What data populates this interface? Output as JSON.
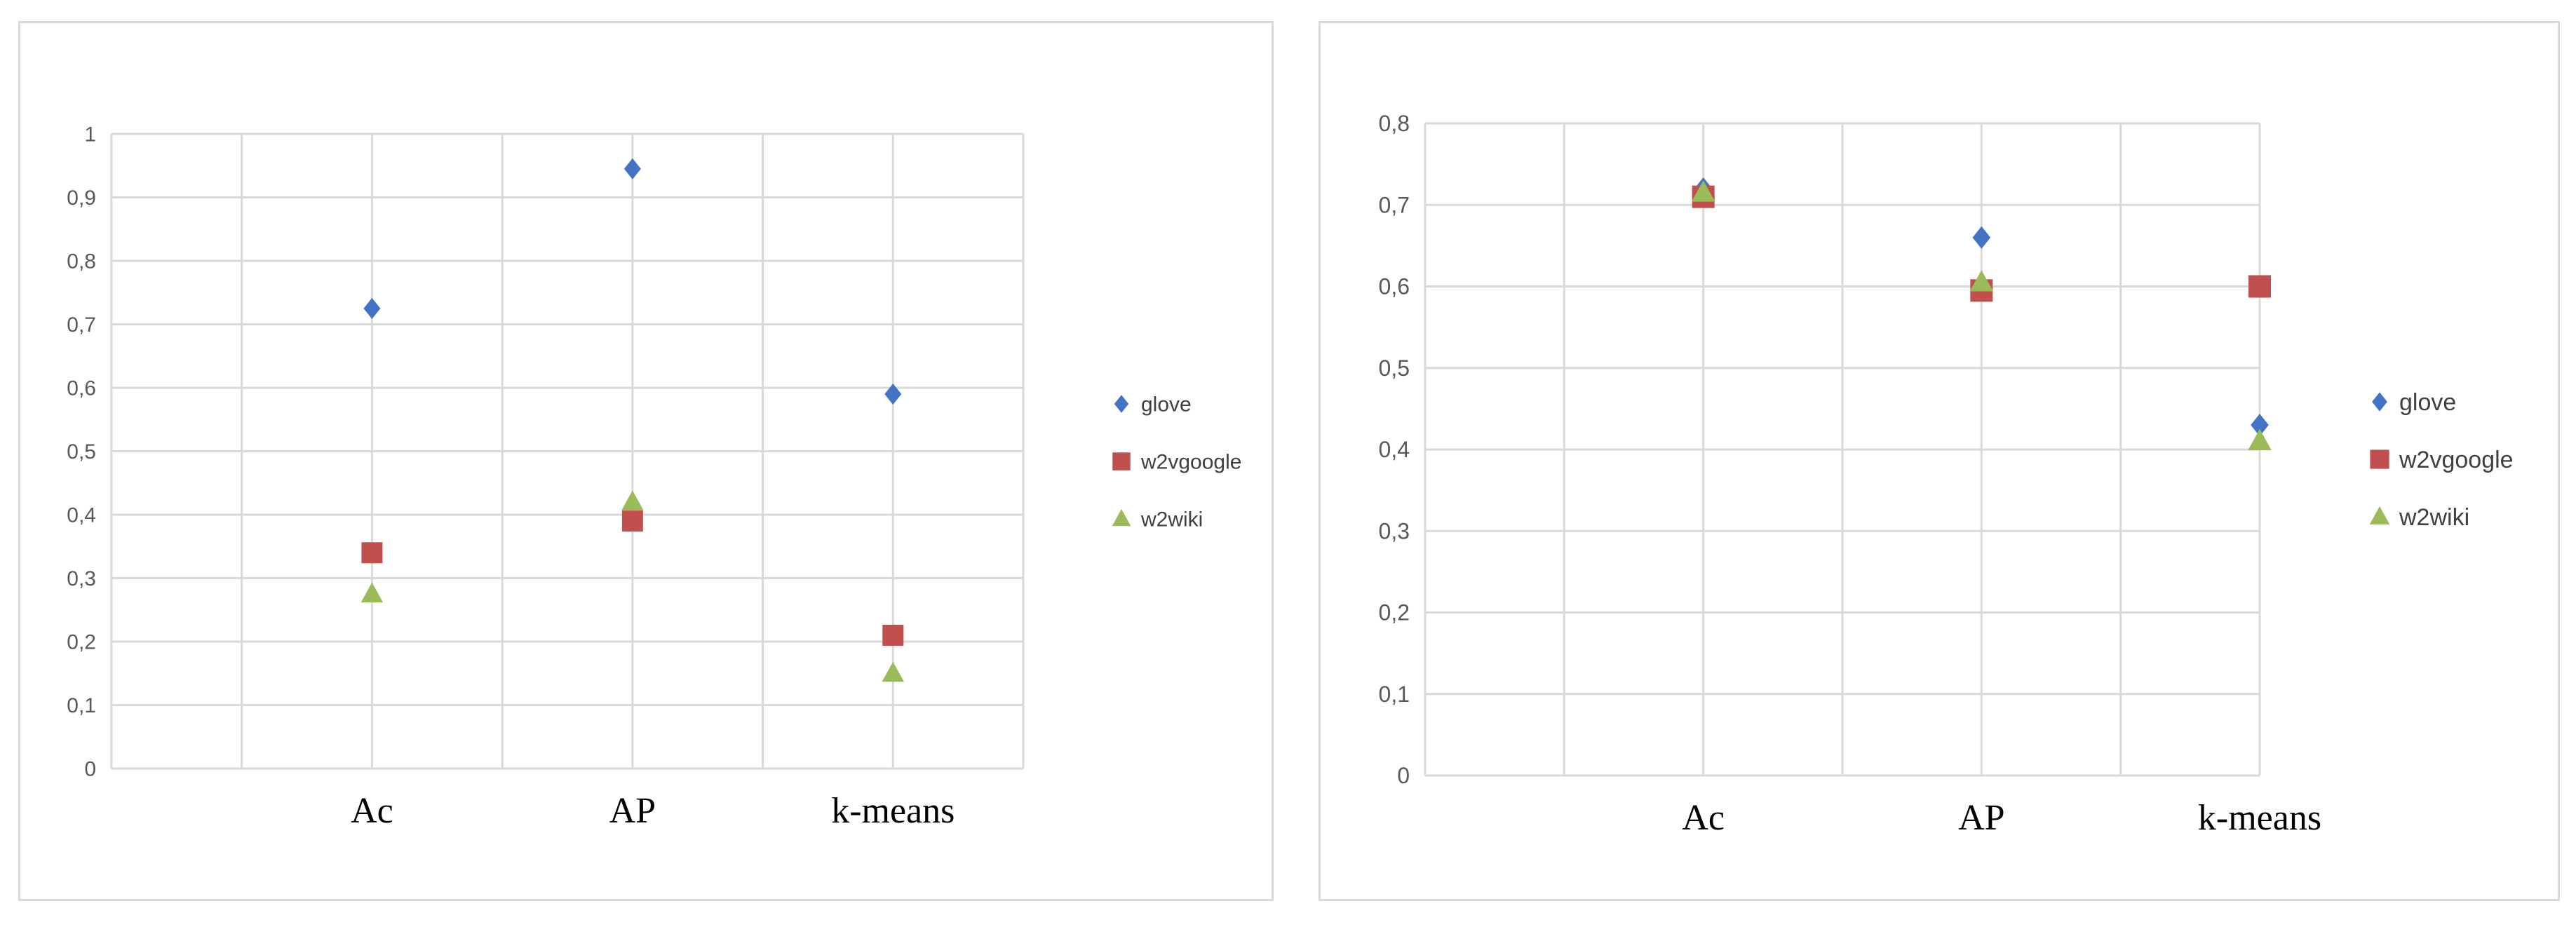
{
  "charts": [
    {
      "type": "scatter",
      "categories": [
        "Ac",
        "AP",
        "k-means"
      ],
      "y_ticks": [
        "0",
        "0,1",
        "0,2",
        "0,3",
        "0,4",
        "0,5",
        "0,6",
        "0,7",
        "0,8",
        "0,9",
        "1"
      ],
      "ylim": [
        0,
        1
      ],
      "grid": true,
      "legend_position": "right",
      "series": [
        {
          "name": "glove",
          "marker": "diamond",
          "color": "#4472c4",
          "values": [
            0.725,
            0.945,
            0.59
          ]
        },
        {
          "name": "w2vgoogle",
          "marker": "square",
          "color": "#c0504d",
          "values": [
            0.34,
            0.39,
            0.21
          ]
        },
        {
          "name": "w2wiki",
          "marker": "triangle",
          "color": "#9bbb59",
          "values": [
            0.275,
            0.42,
            0.15
          ]
        }
      ]
    },
    {
      "type": "scatter",
      "categories": [
        "Ac",
        "AP",
        "k-means"
      ],
      "y_ticks": [
        "0",
        "0,1",
        "0,2",
        "0,3",
        "0,4",
        "0,5",
        "0,6",
        "0,7",
        "0,8"
      ],
      "ylim": [
        0,
        0.8
      ],
      "grid": true,
      "legend_position": "right",
      "series": [
        {
          "name": "glove",
          "marker": "diamond",
          "color": "#4472c4",
          "values": [
            0.72,
            0.66,
            0.43
          ]
        },
        {
          "name": "w2vgoogle",
          "marker": "square",
          "color": "#c0504d",
          "values": [
            0.71,
            0.595,
            0.6
          ]
        },
        {
          "name": "w2wiki",
          "marker": "triangle",
          "color": "#9bbb59",
          "values": [
            0.715,
            0.605,
            0.41
          ]
        }
      ]
    }
  ]
}
